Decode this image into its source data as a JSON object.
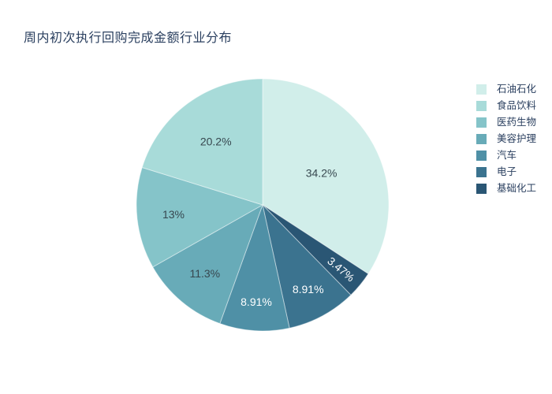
{
  "page": {
    "background_color": "#ffffff"
  },
  "chart_data": {
    "type": "pie",
    "title": "周内初次执行回购完成金额行业分布",
    "title_color": "#2a3f5f",
    "legend_position": "right",
    "direction": "clockwise",
    "start_angle_deg": 0,
    "slices": [
      {
        "label": "石油石化",
        "value_pct": 34.2,
        "display": "34.2%",
        "color": "#d1eeea",
        "label_color": "#37474f"
      },
      {
        "label": "基础化工",
        "value_pct": 3.47,
        "display": "3.47%",
        "color": "#2a5674",
        "label_color": "#ffffff"
      },
      {
        "label": "电子",
        "value_pct": 8.91,
        "display": "8.91%",
        "color": "#3b738f",
        "label_color": "#ffffff"
      },
      {
        "label": "汽车",
        "value_pct": 8.91,
        "display": "8.91%",
        "color": "#4f90a6",
        "label_color": "#ffffff"
      },
      {
        "label": "美容护理",
        "value_pct": 11.3,
        "display": "11.3%",
        "color": "#68abb8",
        "label_color": "#37474f"
      },
      {
        "label": "医药生物",
        "value_pct": 13,
        "display": "13%",
        "color": "#85c4c9",
        "label_color": "#37474f"
      },
      {
        "label": "食品饮料",
        "value_pct": 20.2,
        "display": "20.2%",
        "color": "#a8dbd9",
        "label_color": "#37474f"
      }
    ],
    "legend_order": [
      "石油石化",
      "食品饮料",
      "医药生物",
      "美容护理",
      "汽车",
      "电子",
      "基础化工"
    ]
  }
}
